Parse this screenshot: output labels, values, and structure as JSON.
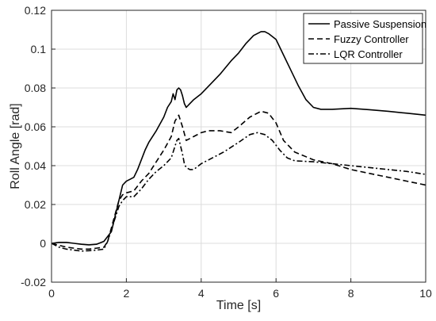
{
  "chart_data": {
    "type": "line",
    "title": "",
    "xlabel": "Time [s]",
    "ylabel": "Roll Angle [rad]",
    "xlim": [
      0,
      10
    ],
    "ylim": [
      -0.02,
      0.12
    ],
    "xticks": [
      0,
      2,
      4,
      6,
      8,
      10
    ],
    "xtick_labels": [
      "0",
      "2",
      "4",
      "6",
      "8",
      "10"
    ],
    "yticks": [
      -0.02,
      0,
      0.02,
      0.04,
      0.06,
      0.08,
      0.1,
      0.12
    ],
    "ytick_labels": [
      "-0.02",
      "0",
      "0.02",
      "0.04",
      "0.06",
      "0.08",
      "0.1",
      "0.12"
    ],
    "grid": true,
    "legend_position": "top-right",
    "series": [
      {
        "name": "Passive Suspension",
        "dash": "solid",
        "x": [
          0,
          0.2,
          0.4,
          0.6,
          0.8,
          1.0,
          1.2,
          1.4,
          1.6,
          1.7,
          1.8,
          1.9,
          2.0,
          2.1,
          2.2,
          2.3,
          2.4,
          2.5,
          2.6,
          2.8,
          3.0,
          3.1,
          3.2,
          3.25,
          3.3,
          3.35,
          3.4,
          3.45,
          3.5,
          3.55,
          3.6,
          3.7,
          3.8,
          4.0,
          4.2,
          4.5,
          4.8,
          5.0,
          5.2,
          5.4,
          5.6,
          5.7,
          5.8,
          6.0,
          6.2,
          6.4,
          6.6,
          6.8,
          7.0,
          7.2,
          7.5,
          8.0,
          8.5,
          9.0,
          9.5,
          10.0
        ],
        "y": [
          0,
          0.0005,
          0.0005,
          0,
          -0.0005,
          -0.0008,
          -0.0005,
          0.001,
          0.006,
          0.014,
          0.022,
          0.03,
          0.032,
          0.033,
          0.034,
          0.038,
          0.043,
          0.048,
          0.052,
          0.058,
          0.065,
          0.07,
          0.073,
          0.077,
          0.074,
          0.079,
          0.08,
          0.079,
          0.076,
          0.072,
          0.07,
          0.072,
          0.074,
          0.077,
          0.081,
          0.087,
          0.094,
          0.098,
          0.103,
          0.107,
          0.109,
          0.109,
          0.108,
          0.105,
          0.097,
          0.089,
          0.081,
          0.074,
          0.07,
          0.069,
          0.069,
          0.0695,
          0.0688,
          0.068,
          0.067,
          0.066
        ]
      },
      {
        "name": "Fuzzy Controller",
        "dash": "dashed",
        "x": [
          0,
          0.2,
          0.4,
          0.6,
          0.8,
          1.0,
          1.2,
          1.4,
          1.5,
          1.6,
          1.7,
          1.8,
          1.9,
          2.0,
          2.2,
          2.4,
          2.6,
          2.8,
          3.0,
          3.2,
          3.3,
          3.4,
          3.5,
          3.6,
          3.8,
          4.0,
          4.2,
          4.5,
          4.8,
          5.0,
          5.3,
          5.6,
          5.8,
          6.0,
          6.2,
          6.5,
          7.0,
          7.5,
          8.0,
          8.5,
          9.0,
          9.5,
          10.0
        ],
        "y": [
          0,
          -0.001,
          -0.002,
          -0.0025,
          -0.003,
          -0.003,
          -0.0025,
          -0.002,
          0.001,
          0.008,
          0.015,
          0.022,
          0.025,
          0.026,
          0.027,
          0.032,
          0.036,
          0.042,
          0.048,
          0.055,
          0.063,
          0.066,
          0.06,
          0.053,
          0.055,
          0.057,
          0.058,
          0.058,
          0.057,
          0.06,
          0.065,
          0.068,
          0.067,
          0.062,
          0.053,
          0.047,
          0.043,
          0.041,
          0.038,
          0.036,
          0.034,
          0.032,
          0.03
        ]
      },
      {
        "name": "LQR Controller",
        "dash": "dashdot",
        "x": [
          0,
          0.2,
          0.4,
          0.6,
          0.8,
          1.0,
          1.2,
          1.4,
          1.5,
          1.6,
          1.7,
          1.8,
          1.9,
          2.0,
          2.2,
          2.4,
          2.6,
          2.8,
          3.0,
          3.2,
          3.3,
          3.35,
          3.4,
          3.45,
          3.5,
          3.55,
          3.6,
          3.7,
          3.8,
          4.0,
          4.3,
          4.6,
          5.0,
          5.3,
          5.5,
          5.7,
          5.9,
          6.1,
          6.3,
          6.5,
          7.0,
          7.5,
          8.0,
          8.5,
          9.0,
          9.5,
          10.0
        ],
        "y": [
          0,
          -0.002,
          -0.003,
          -0.0035,
          -0.004,
          -0.0038,
          -0.0035,
          -0.003,
          0.001,
          0.007,
          0.013,
          0.019,
          0.022,
          0.024,
          0.024,
          0.028,
          0.033,
          0.037,
          0.04,
          0.044,
          0.05,
          0.053,
          0.054,
          0.05,
          0.046,
          0.041,
          0.039,
          0.038,
          0.038,
          0.041,
          0.044,
          0.047,
          0.052,
          0.056,
          0.057,
          0.056,
          0.053,
          0.048,
          0.044,
          0.0425,
          0.042,
          0.041,
          0.04,
          0.039,
          0.038,
          0.037,
          0.0355
        ]
      }
    ]
  }
}
